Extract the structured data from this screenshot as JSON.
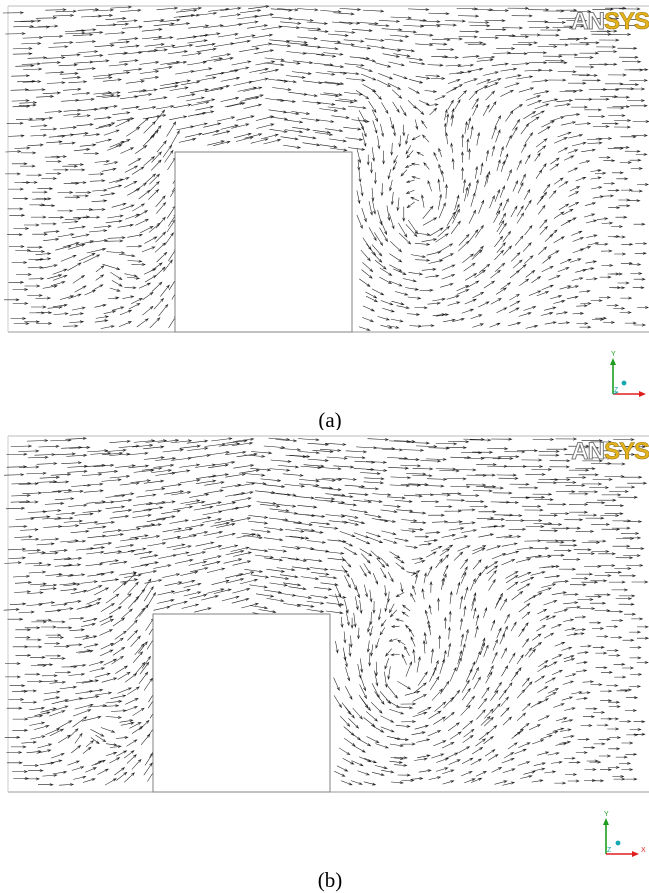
{
  "panels": [
    {
      "id": "a",
      "caption": "(a)",
      "brand": {
        "part1": "AN",
        "part2": "SYS"
      },
      "axis_labels": {
        "y": "Y",
        "x": "X",
        "z": "Z"
      }
    },
    {
      "id": "b",
      "caption": "(b)",
      "brand": {
        "part1": "AN",
        "part2": "SYS"
      },
      "axis_labels": {
        "y": "Y",
        "x": "X",
        "z": "Z"
      }
    }
  ],
  "colors": {
    "vector": "#1a1a1a",
    "obstacle_outline": "#808080",
    "brand_accent": "#e4b31e",
    "axis_y": "#1e9e1e",
    "axis_x": "#e01e1e",
    "axis_z": "#16a8b0"
  }
}
